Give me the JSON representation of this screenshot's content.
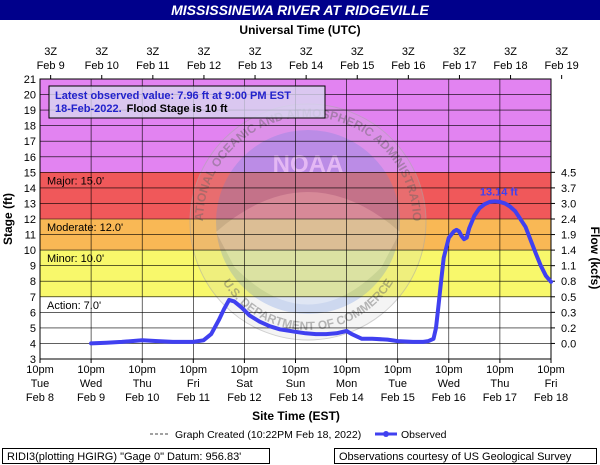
{
  "title": "MISSISSINEWA RIVER AT RIDGEVILLE",
  "top_axis_title": "Universal Time (UTC)",
  "top_ticks": [
    {
      "hour": "3Z",
      "date": "Feb  9"
    },
    {
      "hour": "3Z",
      "date": "Feb 10"
    },
    {
      "hour": "3Z",
      "date": "Feb 11"
    },
    {
      "hour": "3Z",
      "date": "Feb 12"
    },
    {
      "hour": "3Z",
      "date": "Feb 13"
    },
    {
      "hour": "3Z",
      "date": "Feb 14"
    },
    {
      "hour": "3Z",
      "date": "Feb 15"
    },
    {
      "hour": "3Z",
      "date": "Feb 16"
    },
    {
      "hour": "3Z",
      "date": "Feb 17"
    },
    {
      "hour": "3Z",
      "date": "Feb 18"
    },
    {
      "hour": "3Z",
      "date": "Feb 19"
    }
  ],
  "bottom_axis_title": "Site Time (EST)",
  "bottom_ticks": [
    {
      "time": "10pm",
      "day": "Tue",
      "date": "Feb 8"
    },
    {
      "time": "10pm",
      "day": "Wed",
      "date": "Feb 9"
    },
    {
      "time": "10pm",
      "day": "Thu",
      "date": "Feb 10"
    },
    {
      "time": "10pm",
      "day": "Fri",
      "date": "Feb 11"
    },
    {
      "time": "10pm",
      "day": "Sat",
      "date": "Feb 12"
    },
    {
      "time": "10pm",
      "day": "Sun",
      "date": "Feb 13"
    },
    {
      "time": "10pm",
      "day": "Mon",
      "date": "Feb 14"
    },
    {
      "time": "10pm",
      "day": "Tue",
      "date": "Feb 15"
    },
    {
      "time": "10pm",
      "day": "Wed",
      "date": "Feb 16"
    },
    {
      "time": "10pm",
      "day": "Thu",
      "date": "Feb 17"
    },
    {
      "time": "10pm",
      "day": "Fri",
      "date": "Feb 18"
    }
  ],
  "left_axis_title": "Stage (ft)",
  "right_axis_title": "Flow (kcfs)",
  "flow_ticks": [
    {
      "stage": 15,
      "label": "4.5"
    },
    {
      "stage": 14,
      "label": "3.7"
    },
    {
      "stage": 13,
      "label": "3.0"
    },
    {
      "stage": 12,
      "label": "2.4"
    },
    {
      "stage": 11,
      "label": "1.9"
    },
    {
      "stage": 10,
      "label": "1.4"
    },
    {
      "stage": 9,
      "label": "1.1"
    },
    {
      "stage": 8,
      "label": "0.8"
    },
    {
      "stage": 7,
      "label": "0.5"
    },
    {
      "stage": 6,
      "label": "0.3"
    },
    {
      "stage": 5,
      "label": "0.2"
    },
    {
      "stage": 4,
      "label": "0.0"
    }
  ],
  "flood_zones": [
    {
      "name": "Record",
      "from": 15,
      "to": 21,
      "color": "#e283f1"
    },
    {
      "name": "Major",
      "label": "Major: 15.0'",
      "from": 12,
      "to": 15,
      "color": "#f0585a"
    },
    {
      "name": "Moderate",
      "label": "Moderate: 12.0'",
      "from": 10,
      "to": 12,
      "color": "#f9b855"
    },
    {
      "name": "Minor",
      "label": "Minor: 10.0'",
      "from": 7,
      "to": 10,
      "color": "#f8f86b"
    },
    {
      "name": "Action",
      "label": "Action: 7.0'",
      "from": 3,
      "to": 7,
      "color": "#ffffff"
    }
  ],
  "info_box": {
    "line1": "Latest observed value: 7.96 ft at 9:00 PM EST",
    "line2_date": "18-Feb-2022.",
    "line2_flood": "Flood Stage is 10 ft"
  },
  "peak_label": "13.14 ft",
  "legend": {
    "created": "Graph Created (10:22PM Feb 18, 2022)",
    "observed": "Observed"
  },
  "footer": {
    "left": "RIDI3(plotting HGIRG) \"Gage 0\" Datum: 956.83'",
    "right": "Observations courtesy of US Geological Survey"
  },
  "watermark": {
    "noaa": "NOAA",
    "ring_top": "NATIONAL OCEANIC AND ATMOSPHERIC ADMINISTRATION",
    "ring_bottom": "U.S. DEPARTMENT OF COMMERCE"
  },
  "chart_data": {
    "type": "line",
    "x_unit": "days after 10pm EST Tue Feb 8",
    "xlim": [
      0,
      10
    ],
    "ylim": [
      3,
      21
    ],
    "y2_label": "Flow (kcfs)",
    "series": [
      {
        "name": "Observed",
        "color": "#4040f0",
        "x": [
          1.0,
          1.3,
          1.6,
          2.0,
          2.3,
          2.6,
          3.0,
          3.2,
          3.35,
          3.5,
          3.6,
          3.7,
          3.8,
          3.95,
          4.1,
          4.3,
          4.5,
          4.7,
          5.0,
          5.2,
          5.4,
          5.6,
          5.8,
          6.0,
          6.1,
          6.3,
          6.5,
          6.8,
          7.0,
          7.3,
          7.5,
          7.6,
          7.7,
          7.75,
          7.8,
          7.85,
          7.9,
          8.0,
          8.1,
          8.15,
          8.2,
          8.25,
          8.3,
          8.35,
          8.4,
          8.5,
          8.6,
          8.7,
          8.8,
          8.9,
          9.0,
          9.1,
          9.2,
          9.3,
          9.5,
          9.7,
          9.8,
          9.9,
          10.0
        ],
        "y": [
          4.0,
          4.05,
          4.1,
          4.2,
          4.15,
          4.1,
          4.1,
          4.2,
          4.6,
          5.5,
          6.2,
          6.8,
          6.7,
          6.3,
          5.8,
          5.4,
          5.1,
          4.9,
          4.75,
          4.65,
          4.6,
          4.6,
          4.65,
          4.8,
          4.6,
          4.3,
          4.3,
          4.25,
          4.15,
          4.1,
          4.1,
          4.15,
          4.3,
          5.0,
          6.5,
          8.0,
          9.5,
          10.8,
          11.2,
          11.3,
          11.2,
          10.9,
          10.7,
          10.8,
          11.4,
          12.2,
          12.7,
          12.95,
          13.1,
          13.14,
          13.1,
          13.0,
          12.8,
          12.5,
          11.5,
          9.8,
          9.0,
          8.35,
          7.96
        ]
      }
    ]
  }
}
